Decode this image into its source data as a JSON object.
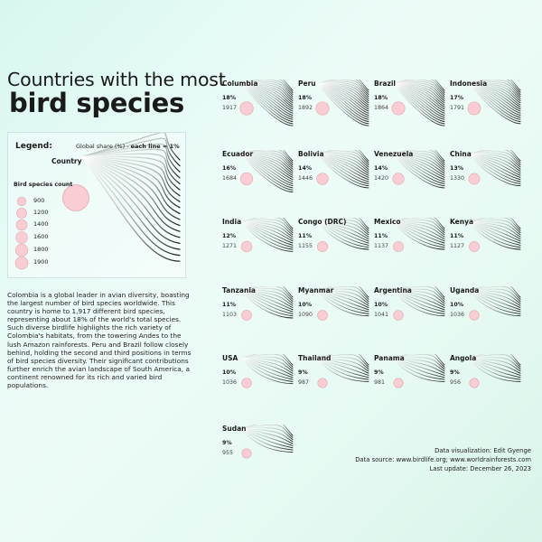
{
  "header": {
    "title_line1": "Countries with the most",
    "title_line2": "bird species"
  },
  "legend": {
    "title": "Legend:",
    "share_label": "Global share (%) - ",
    "share_unit": "each line = 1%",
    "country_label": "Country",
    "count_label": "Bird species count",
    "sizes": [
      "900",
      "1200",
      "1400",
      "1600",
      "1800",
      "1900"
    ]
  },
  "description": "Colombia is a global leader in avian diversity, boasting the largest number of bird species worldwide. This country is home to 1,917 different bird species, representing about 18% of the world's total species. Such diverse birdlife highlights the rich variety of Colombia's habitats, from the towering Andes to the lush Amazon rainforests. Peru and Brazil follow closely behind, holding the second and third positions in terms of bird species diversity. Their significant contributions further enrich the avian landscape of South America, a continent renowned for its rich and varied bird populations.",
  "credits": {
    "line1": "Data visualization: Edit Gyenge",
    "line2": "Data source: www.birdlife.org; www.worldrainforests.com",
    "line3": "Last update: December 26, 2023"
  },
  "colors": {
    "circle_fill": "#f9cdd3",
    "circle_stroke": "#e3a8b0",
    "line_dark": "#1a1a1a",
    "line_light": "#ffffff"
  },
  "chart_data": {
    "type": "small-multiples",
    "encoding": "each line = 1% global share; circle size = bird species count",
    "countries": [
      {
        "name": "Columbia",
        "pct_label": "18%",
        "share": 18,
        "count": 1917
      },
      {
        "name": "Peru",
        "pct_label": "18%",
        "share": 18,
        "count": 1892
      },
      {
        "name": "Brazil",
        "pct_label": "18%",
        "share": 18,
        "count": 1864
      },
      {
        "name": "Indonesia",
        "pct_label": "17%",
        "share": 17,
        "count": 1791
      },
      {
        "name": "Ecuador",
        "pct_label": "16%",
        "share": 16,
        "count": 1684
      },
      {
        "name": "Bolivia",
        "pct_label": "14%",
        "share": 14,
        "count": 1446
      },
      {
        "name": "Venezuela",
        "pct_label": "14%",
        "share": 14,
        "count": 1420
      },
      {
        "name": "China",
        "pct_label": "13%",
        "share": 13,
        "count": 1330
      },
      {
        "name": "India",
        "pct_label": "12%",
        "share": 12,
        "count": 1271
      },
      {
        "name": "Congo (DRC)",
        "pct_label": "11%",
        "share": 11,
        "count": 1155
      },
      {
        "name": "Mexico",
        "pct_label": "11%",
        "share": 11,
        "count": 1137
      },
      {
        "name": "Kenya",
        "pct_label": "11%",
        "share": 11,
        "count": 1127
      },
      {
        "name": "Tanzania",
        "pct_label": "11%",
        "share": 11,
        "count": 1103
      },
      {
        "name": "Myanmar",
        "pct_label": "10%",
        "share": 10,
        "count": 1090
      },
      {
        "name": "Argentina",
        "pct_label": "10%",
        "share": 10,
        "count": 1041
      },
      {
        "name": "Uganda",
        "pct_label": "10%",
        "share": 10,
        "count": 1036
      },
      {
        "name": "USA",
        "pct_label": "10%",
        "share": 10,
        "count": 1036
      },
      {
        "name": "Thailand",
        "pct_label": "9%",
        "share": 9,
        "count": 987
      },
      {
        "name": "Panama",
        "pct_label": "9%",
        "share": 9,
        "count": 981
      },
      {
        "name": "Angola",
        "pct_label": "9%",
        "share": 9,
        "count": 956
      },
      {
        "name": "Sudan",
        "pct_label": "9%",
        "share": 9,
        "count": 955
      }
    ]
  }
}
